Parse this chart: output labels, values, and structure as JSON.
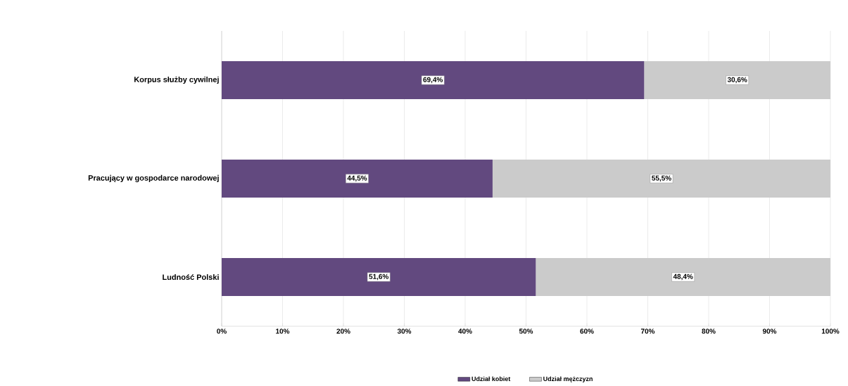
{
  "chart_data": {
    "type": "bar",
    "orientation": "horizontal",
    "stacked": true,
    "categories": [
      "Korpus służby cywilnej",
      "Pracujący w gospodarce narodowej",
      "Ludność Polski"
    ],
    "series": [
      {
        "name": "Udział kobiet",
        "color": "#62497f",
        "values": [
          69.4,
          44.5,
          51.6
        ],
        "value_labels": [
          "69,4%",
          "44,5%",
          "51,6%"
        ]
      },
      {
        "name": "Udział mężczyzn",
        "color": "#cbcbcb",
        "values": [
          30.6,
          55.5,
          48.4
        ],
        "value_labels": [
          "30,6%",
          "55,5%",
          "48,4%"
        ]
      }
    ],
    "xlim": [
      0,
      100
    ],
    "xticks": [
      {
        "value": 0,
        "label": "0%"
      },
      {
        "value": 10,
        "label": "10%"
      },
      {
        "value": 20,
        "label": "20%"
      },
      {
        "value": 30,
        "label": "30%"
      },
      {
        "value": 40,
        "label": "40%"
      },
      {
        "value": 50,
        "label": "50%"
      },
      {
        "value": 60,
        "label": "60%"
      },
      {
        "value": 70,
        "label": "70%"
      },
      {
        "value": 80,
        "label": "80%"
      },
      {
        "value": 90,
        "label": "90%"
      },
      {
        "value": 100,
        "label": "100%"
      }
    ],
    "grid": "x",
    "legend": "bottom"
  }
}
